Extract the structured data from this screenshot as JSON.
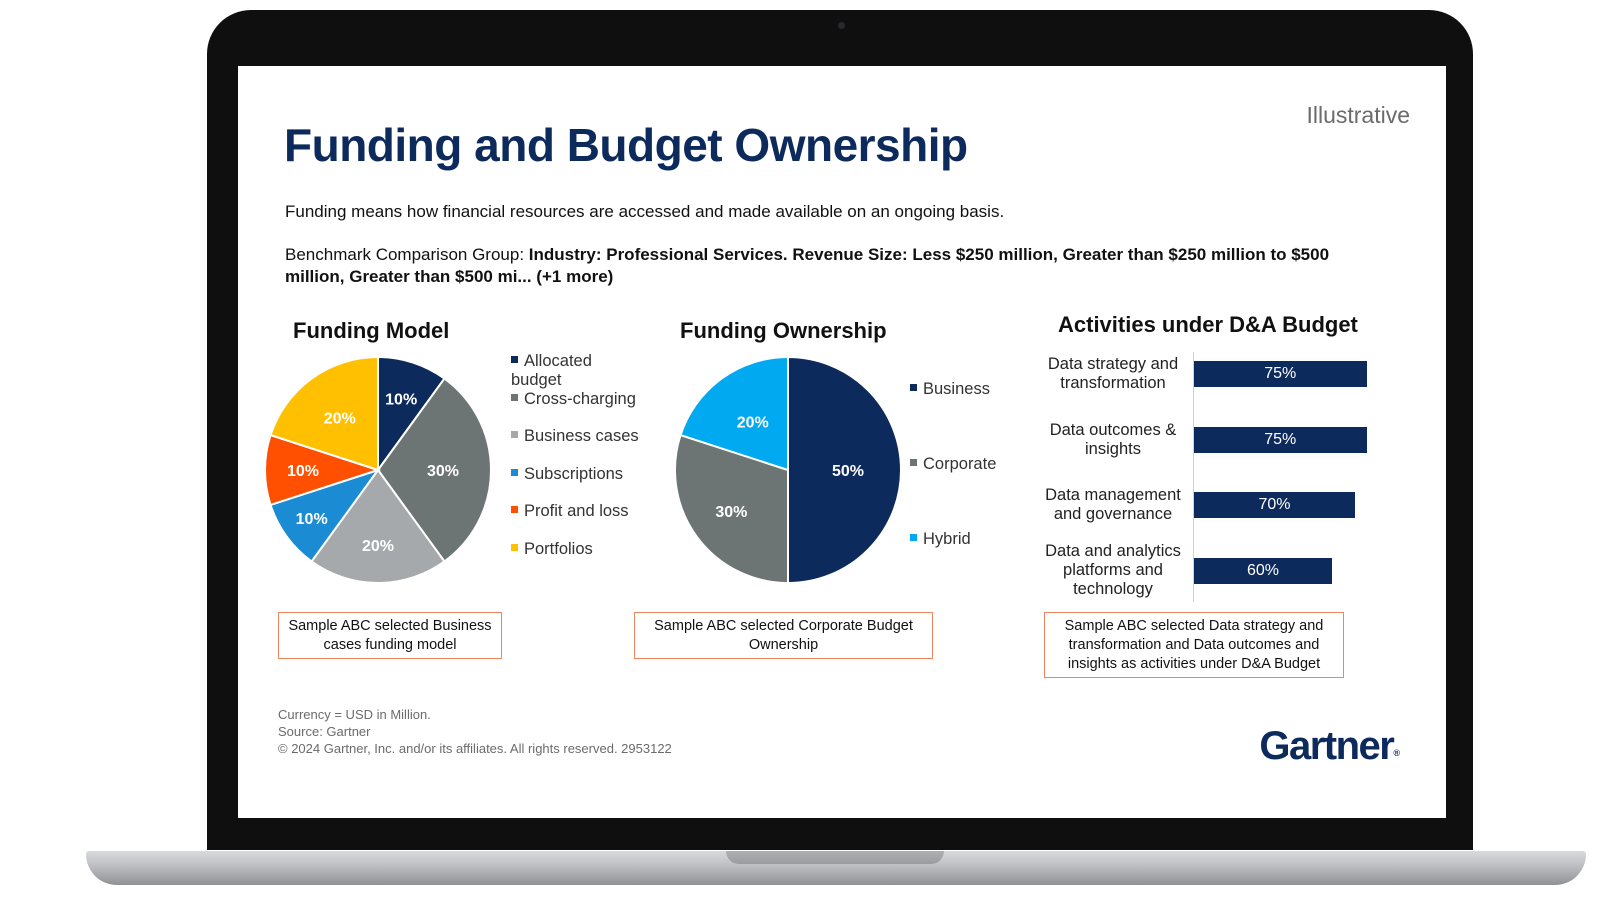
{
  "slide": {
    "title": "Funding and Budget Ownership",
    "tag": "Illustrative",
    "description": "Funding means how financial resources are accessed and made available on an ongoing basis.",
    "benchmark_prefix": "Benchmark Comparison Group: ",
    "benchmark_bold": "Industry: Professional Services. Revenue Size: Less $250 million, Greater than $250 million to $500 million, Greater than $500 mi... (+1 more)",
    "footer": {
      "currency": "Currency = USD in Million.",
      "source": "Source: Gartner",
      "copyright": "© 2024 Gartner, Inc. and/or its affiliates. All rights reserved. 2953122"
    },
    "logo": "Gartner",
    "logo_mark": "®"
  },
  "notes": {
    "funding_model": "Sample ABC selected Business cases funding model",
    "funding_ownership": "Sample ABC selected Corporate Budget Ownership",
    "activities": "Sample ABC selected Data strategy and transformation and Data outcomes and insights as activities under D&A Budget"
  },
  "chart_data": [
    {
      "type": "pie",
      "title": "Funding Model",
      "categories": [
        "Allocated budget",
        "Cross-charging",
        "Business cases",
        "Subscriptions",
        "Profit and loss",
        "Portfolios"
      ],
      "values": [
        10,
        30,
        20,
        10,
        10,
        20
      ],
      "labels": [
        "10%",
        "30%",
        "20%",
        "10%",
        "10%",
        "20%"
      ],
      "colors": [
        "#0d2a5c",
        "#6d7474",
        "#a6a9ab",
        "#1b8bd3",
        "#fe5000",
        "#fec000"
      ]
    },
    {
      "type": "pie",
      "title": "Funding Ownership",
      "categories": [
        "Business",
        "Corporate",
        "Hybrid"
      ],
      "values": [
        50,
        30,
        20
      ],
      "labels": [
        "50%",
        "30%",
        "20%"
      ],
      "colors": [
        "#0d2a5c",
        "#6d7474",
        "#00a9f0"
      ]
    },
    {
      "type": "bar",
      "orientation": "horizontal",
      "title": "Activities under D&A Budget",
      "categories": [
        "Data strategy and transformation",
        "Data outcomes & insights",
        "Data management and governance",
        "Data and analytics platforms and technology"
      ],
      "values": [
        75,
        75,
        70,
        60
      ],
      "labels": [
        "75%",
        "75%",
        "70%",
        "60%"
      ],
      "xlim": [
        0,
        100
      ],
      "color": "#0d2a5c"
    }
  ]
}
